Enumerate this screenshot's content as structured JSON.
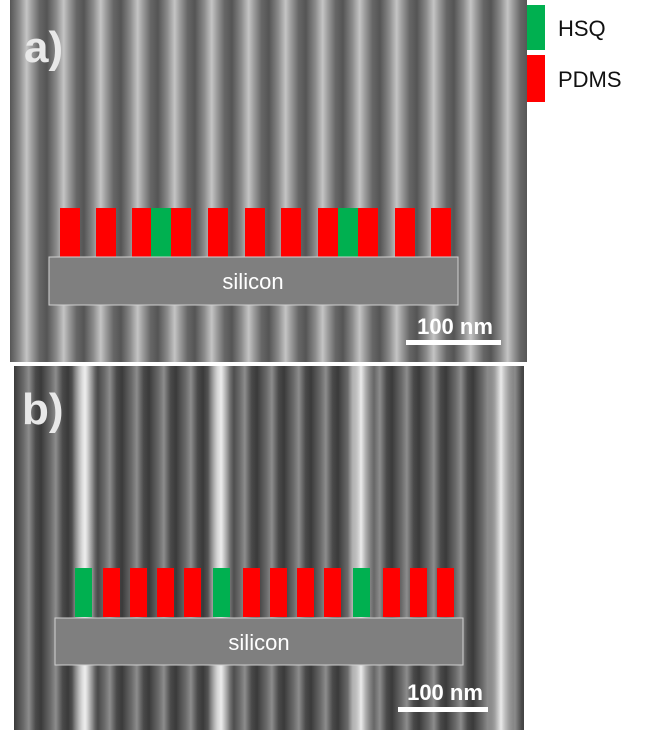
{
  "panels": [
    {
      "label": "a)",
      "substrate": "silicon",
      "scale_bar": "100 nm"
    },
    {
      "label": "b)",
      "substrate": "silicon",
      "scale_bar": "100 nm"
    }
  ],
  "legend": [
    {
      "label": "HSQ"
    },
    {
      "label": "PDMS"
    }
  ]
}
